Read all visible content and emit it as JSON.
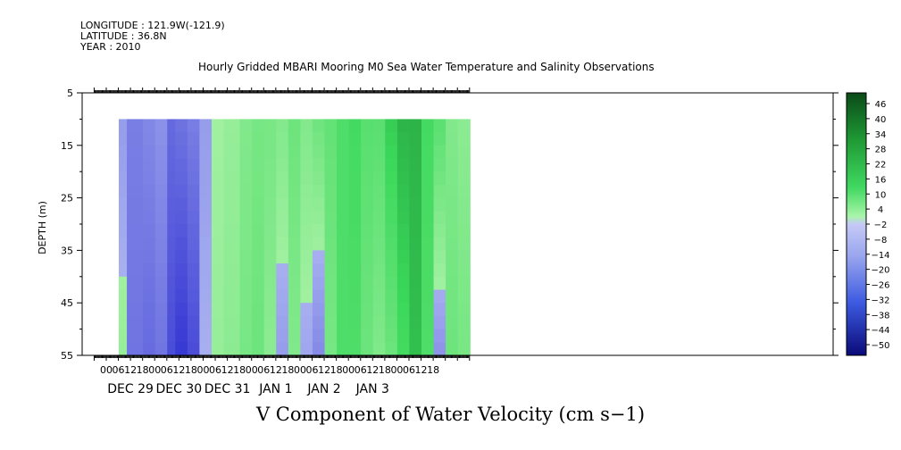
{
  "header": {
    "longitude": "LONGITUDE : 121.9W(-121.9)",
    "latitude": "LATITUDE : 36.8N",
    "year": "YEAR : 2010"
  },
  "chart_data": {
    "type": "heatmap",
    "title": "Hourly Gridded MBARI Mooring M0 Sea Water Temperature and Salinity Observations",
    "xlabel": "V Component of Water Velocity (cm s−1)",
    "ylabel": "DEPTH (m)",
    "ylim": [
      55,
      5
    ],
    "y_ticks": [
      5,
      15,
      25,
      35,
      45,
      55
    ],
    "data_depth_range": [
      10,
      55
    ],
    "x_hour_labels": [
      "00",
      "06",
      "12",
      "18",
      "00",
      "06",
      "12",
      "18",
      "00",
      "06",
      "12",
      "18",
      "00",
      "06",
      "12",
      "18",
      "00",
      "06",
      "12",
      "18",
      "00",
      "06",
      "12",
      "18",
      "00",
      "06",
      "12",
      "18"
    ],
    "x_day_labels": [
      "DEC 29",
      "DEC 30",
      "DEC 31",
      "JAN  1",
      "JAN  2",
      "JAN  3"
    ],
    "colorbar": {
      "labels": [
        "46",
        "40",
        "34",
        "28",
        "22",
        "16",
        "10",
        "4",
        "−2",
        "−8",
        "−14",
        "−20",
        "−26",
        "−32",
        "−38",
        "−44",
        "−50"
      ],
      "low_color": "#1a1acc",
      "mid_neg_color": "#a8b0f0",
      "mid_pos_color": "#a0f0a0",
      "high_color": "#0f5f20"
    },
    "bands": [
      {
        "x": [
          0,
          4
        ],
        "top": -4,
        "bottom": 2
      },
      {
        "x": [
          4,
          12
        ],
        "top": -10,
        "bottom": -12
      },
      {
        "x": [
          12,
          18
        ],
        "top": -8,
        "bottom": -14
      },
      {
        "x": [
          18,
          24
        ],
        "top": -6,
        "bottom": -12
      },
      {
        "x": [
          24,
          28
        ],
        "top": -14,
        "bottom": -20
      },
      {
        "x": [
          28,
          34
        ],
        "top": -12,
        "bottom": -24
      },
      {
        "x": [
          34,
          40
        ],
        "top": -10,
        "bottom": -20
      },
      {
        "x": [
          40,
          46
        ],
        "top": -4,
        "bottom": 0
      },
      {
        "x": [
          46,
          52
        ],
        "top": 0,
        "bottom": 2
      },
      {
        "x": [
          52,
          60
        ],
        "top": 2,
        "bottom": 4
      },
      {
        "x": [
          60,
          66
        ],
        "top": 6,
        "bottom": 8
      },
      {
        "x": [
          66,
          72
        ],
        "top": 8,
        "bottom": 10
      },
      {
        "x": [
          72,
          78
        ],
        "top": 8,
        "bottom": 4
      },
      {
        "x": [
          78,
          84
        ],
        "top": 6,
        "bottom": -4
      },
      {
        "x": [
          84,
          90
        ],
        "top": 10,
        "bottom": 6
      },
      {
        "x": [
          90,
          96
        ],
        "top": 6,
        "bottom": -2
      },
      {
        "x": [
          96,
          102
        ],
        "top": 10,
        "bottom": -8
      },
      {
        "x": [
          102,
          108
        ],
        "top": 12,
        "bottom": 8
      },
      {
        "x": [
          108,
          114
        ],
        "top": 16,
        "bottom": 16
      },
      {
        "x": [
          114,
          120
        ],
        "top": 18,
        "bottom": 16
      },
      {
        "x": [
          120,
          126
        ],
        "top": 14,
        "bottom": 10
      },
      {
        "x": [
          126,
          132
        ],
        "top": 14,
        "bottom": 6
      },
      {
        "x": [
          132,
          138
        ],
        "top": 22,
        "bottom": 10
      },
      {
        "x": [
          138,
          144
        ],
        "top": 26,
        "bottom": 18
      },
      {
        "x": [
          144,
          150
        ],
        "top": 26,
        "bottom": 24
      },
      {
        "x": [
          150,
          156
        ],
        "top": 18,
        "bottom": 16
      },
      {
        "x": [
          156,
          162
        ],
        "top": 14,
        "bottom": -6
      },
      {
        "x": [
          162,
          168
        ],
        "top": 6,
        "bottom": 10
      },
      {
        "x": [
          168,
          174
        ],
        "top": 4,
        "bottom": 8
      }
    ]
  }
}
